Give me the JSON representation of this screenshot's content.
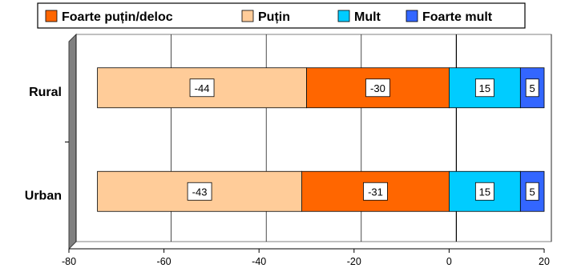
{
  "chart_data": {
    "type": "bar",
    "orientation": "horizontal",
    "stacked": "diverging",
    "title": "",
    "xlabel": "",
    "ylabel": "",
    "categories": [
      "Rural",
      "Urban"
    ],
    "series": [
      {
        "name": "Foarte puțin/deloc",
        "values": [
          -30,
          -31
        ],
        "color": "#ff6600"
      },
      {
        "name": "Puțin",
        "values": [
          -44,
          -43
        ],
        "color": "#ffcc99"
      },
      {
        "name": "Mult",
        "values": [
          15,
          15
        ],
        "color": "#00ccff"
      },
      {
        "name": "Foarte mult",
        "values": [
          5,
          5
        ],
        "color": "#3366ff"
      }
    ],
    "xlim": [
      -80,
      20
    ],
    "xticks": [
      -80,
      -60,
      -40,
      -20,
      0,
      20
    ],
    "legend_position": "top",
    "grid": "vertical"
  }
}
